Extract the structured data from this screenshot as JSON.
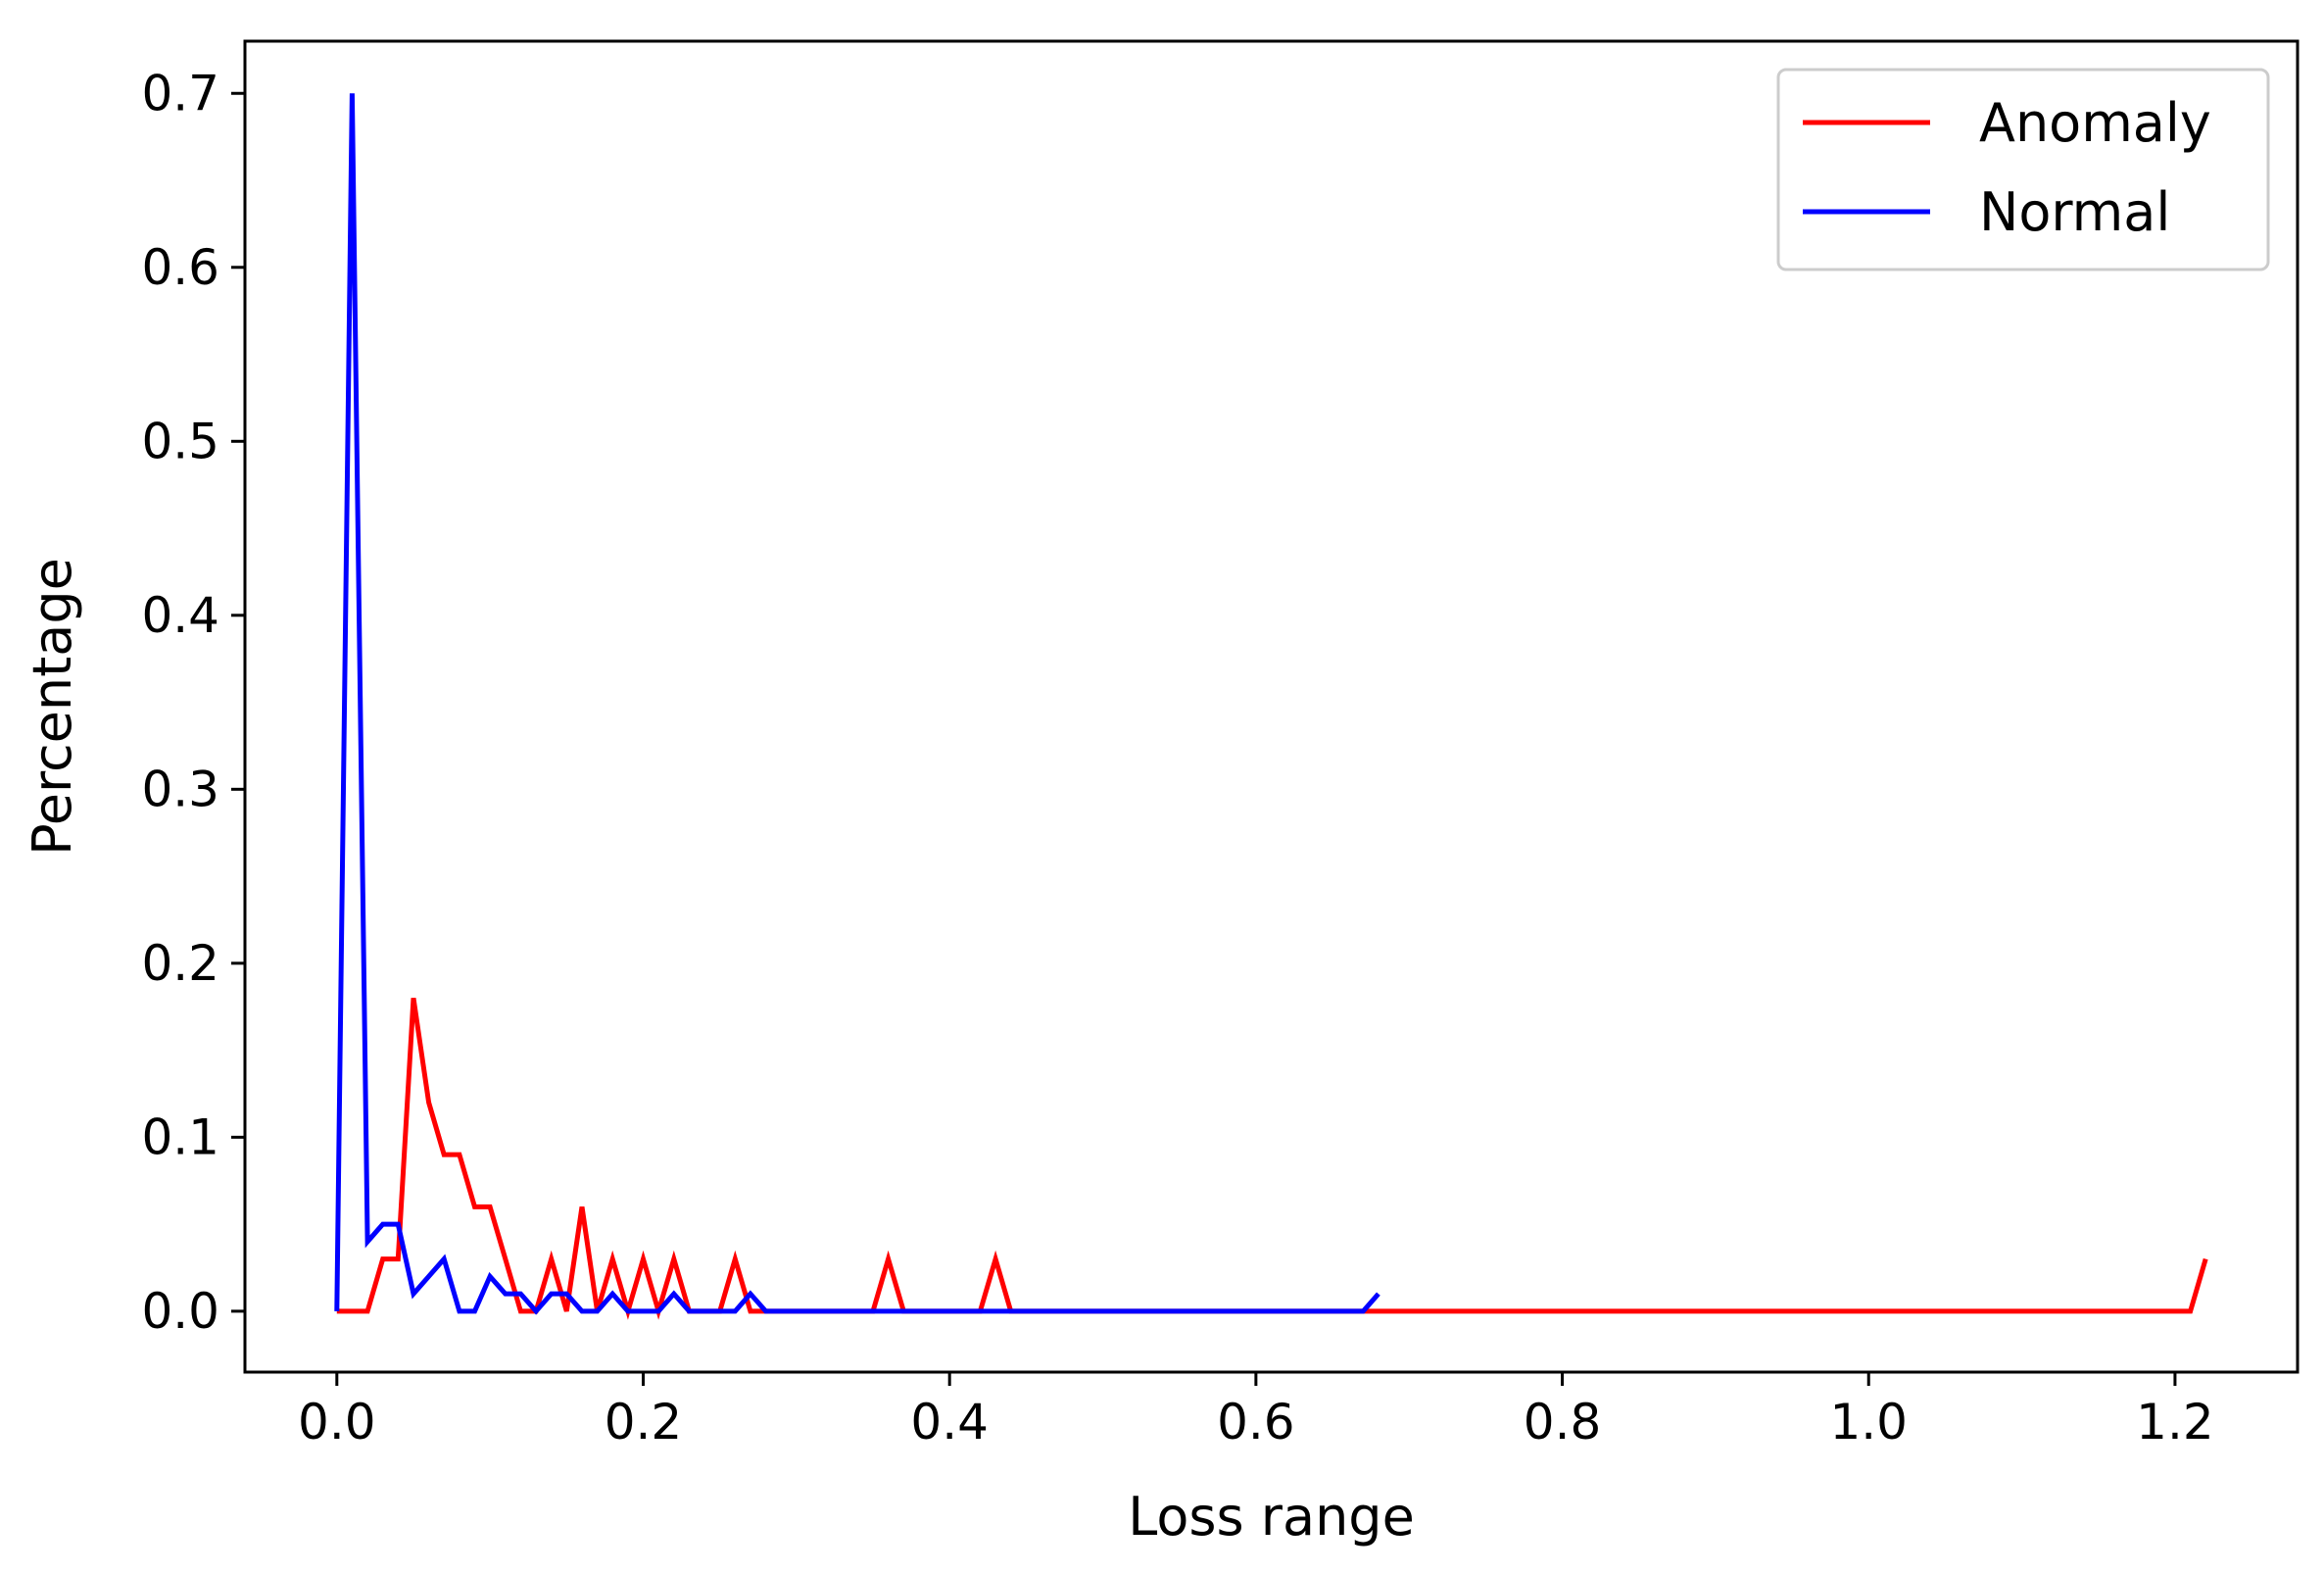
{
  "chart_data": {
    "type": "line",
    "title": "",
    "xlabel": "Loss range",
    "ylabel": "Percentage",
    "xlim": [
      -0.06,
      1.28
    ],
    "ylim": [
      -0.035,
      0.73
    ],
    "xticks": [
      {
        "value": 0.0,
        "label": "0.0"
      },
      {
        "value": 0.2,
        "label": "0.2"
      },
      {
        "value": 0.4,
        "label": "0.4"
      },
      {
        "value": 0.6,
        "label": "0.6"
      },
      {
        "value": 0.8,
        "label": "0.8"
      },
      {
        "value": 1.0,
        "label": "1.0"
      },
      {
        "value": 1.2,
        "label": "1.2"
      }
    ],
    "yticks": [
      {
        "value": 0.0,
        "label": "0.0"
      },
      {
        "value": 0.1,
        "label": "0.1"
      },
      {
        "value": 0.2,
        "label": "0.2"
      },
      {
        "value": 0.3,
        "label": "0.3"
      },
      {
        "value": 0.4,
        "label": "0.4"
      },
      {
        "value": 0.5,
        "label": "0.5"
      },
      {
        "value": 0.6,
        "label": "0.6"
      },
      {
        "value": 0.7,
        "label": "0.7"
      }
    ],
    "grid": false,
    "legend_position": "top-right",
    "series": [
      {
        "name": "Anomaly",
        "color": "#ff0000",
        "x": [
          0.0,
          0.01,
          0.02,
          0.03,
          0.04,
          0.05,
          0.06,
          0.07,
          0.08,
          0.09,
          0.1,
          0.11,
          0.12,
          0.13,
          0.14,
          0.15,
          0.16,
          0.17,
          0.18,
          0.19,
          0.2,
          0.21,
          0.22,
          0.23,
          0.24,
          0.25,
          0.26,
          0.27,
          0.35,
          0.36,
          0.37,
          0.42,
          0.43,
          0.44,
          1.21,
          1.22
        ],
        "y": [
          0.0,
          0.0,
          0.0,
          0.03,
          0.03,
          0.18,
          0.12,
          0.09,
          0.09,
          0.06,
          0.06,
          0.03,
          0.0,
          0.0,
          0.03,
          0.0,
          0.06,
          0.0,
          0.03,
          0.0,
          0.03,
          0.0,
          0.03,
          0.0,
          0.0,
          0.0,
          0.03,
          0.0,
          0.0,
          0.03,
          0.0,
          0.0,
          0.03,
          0.0,
          0.0,
          0.03
        ]
      },
      {
        "name": "Normal",
        "color": "#0000ff",
        "x": [
          0.0,
          0.01,
          0.02,
          0.03,
          0.04,
          0.05,
          0.06,
          0.07,
          0.08,
          0.09,
          0.1,
          0.11,
          0.12,
          0.13,
          0.14,
          0.15,
          0.16,
          0.17,
          0.18,
          0.19,
          0.2,
          0.21,
          0.22,
          0.23,
          0.24,
          0.25,
          0.26,
          0.27,
          0.28,
          0.67,
          0.68
        ],
        "y": [
          0.0,
          0.7,
          0.04,
          0.05,
          0.05,
          0.01,
          0.02,
          0.03,
          0.0,
          0.0,
          0.02,
          0.01,
          0.01,
          0.0,
          0.01,
          0.01,
          0.0,
          0.0,
          0.01,
          0.0,
          0.0,
          0.0,
          0.01,
          0.0,
          0.0,
          0.0,
          0.0,
          0.01,
          0.0,
          0.0,
          0.01
        ]
      }
    ]
  }
}
